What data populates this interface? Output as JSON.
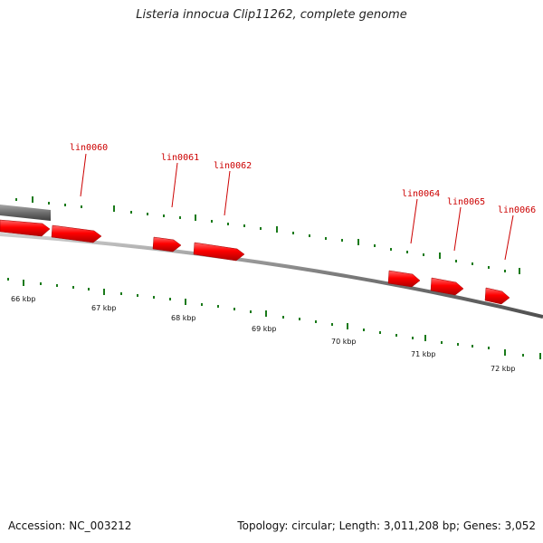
{
  "title": "Listeria innocua Clip11262, complete genome",
  "footer": {
    "accession_label": "Accession:",
    "accession": "NC_003212",
    "topology_label": "Topology:",
    "topology": "circular",
    "length_label": "Length:",
    "length": "3,011,208 bp",
    "genes_label": "Genes:",
    "genes": "3,052"
  },
  "colors": {
    "gene": "#ff0000",
    "gene_label": "#cc0000",
    "tick": "#1a7a1a",
    "backbone": "#808080",
    "highlight_block": "#6e6e6e"
  },
  "scale": {
    "unit": "kbp",
    "labels": [
      "66 kbp",
      "67 kbp",
      "68 kbp",
      "69 kbp",
      "70 kbp",
      "71 kbp",
      "72 kbp"
    ]
  },
  "genes": [
    {
      "name": "lin0060"
    },
    {
      "name": "lin0061"
    },
    {
      "name": "lin0062"
    },
    {
      "name": "lin0064"
    },
    {
      "name": "lin0065"
    },
    {
      "name": "lin0066"
    }
  ]
}
